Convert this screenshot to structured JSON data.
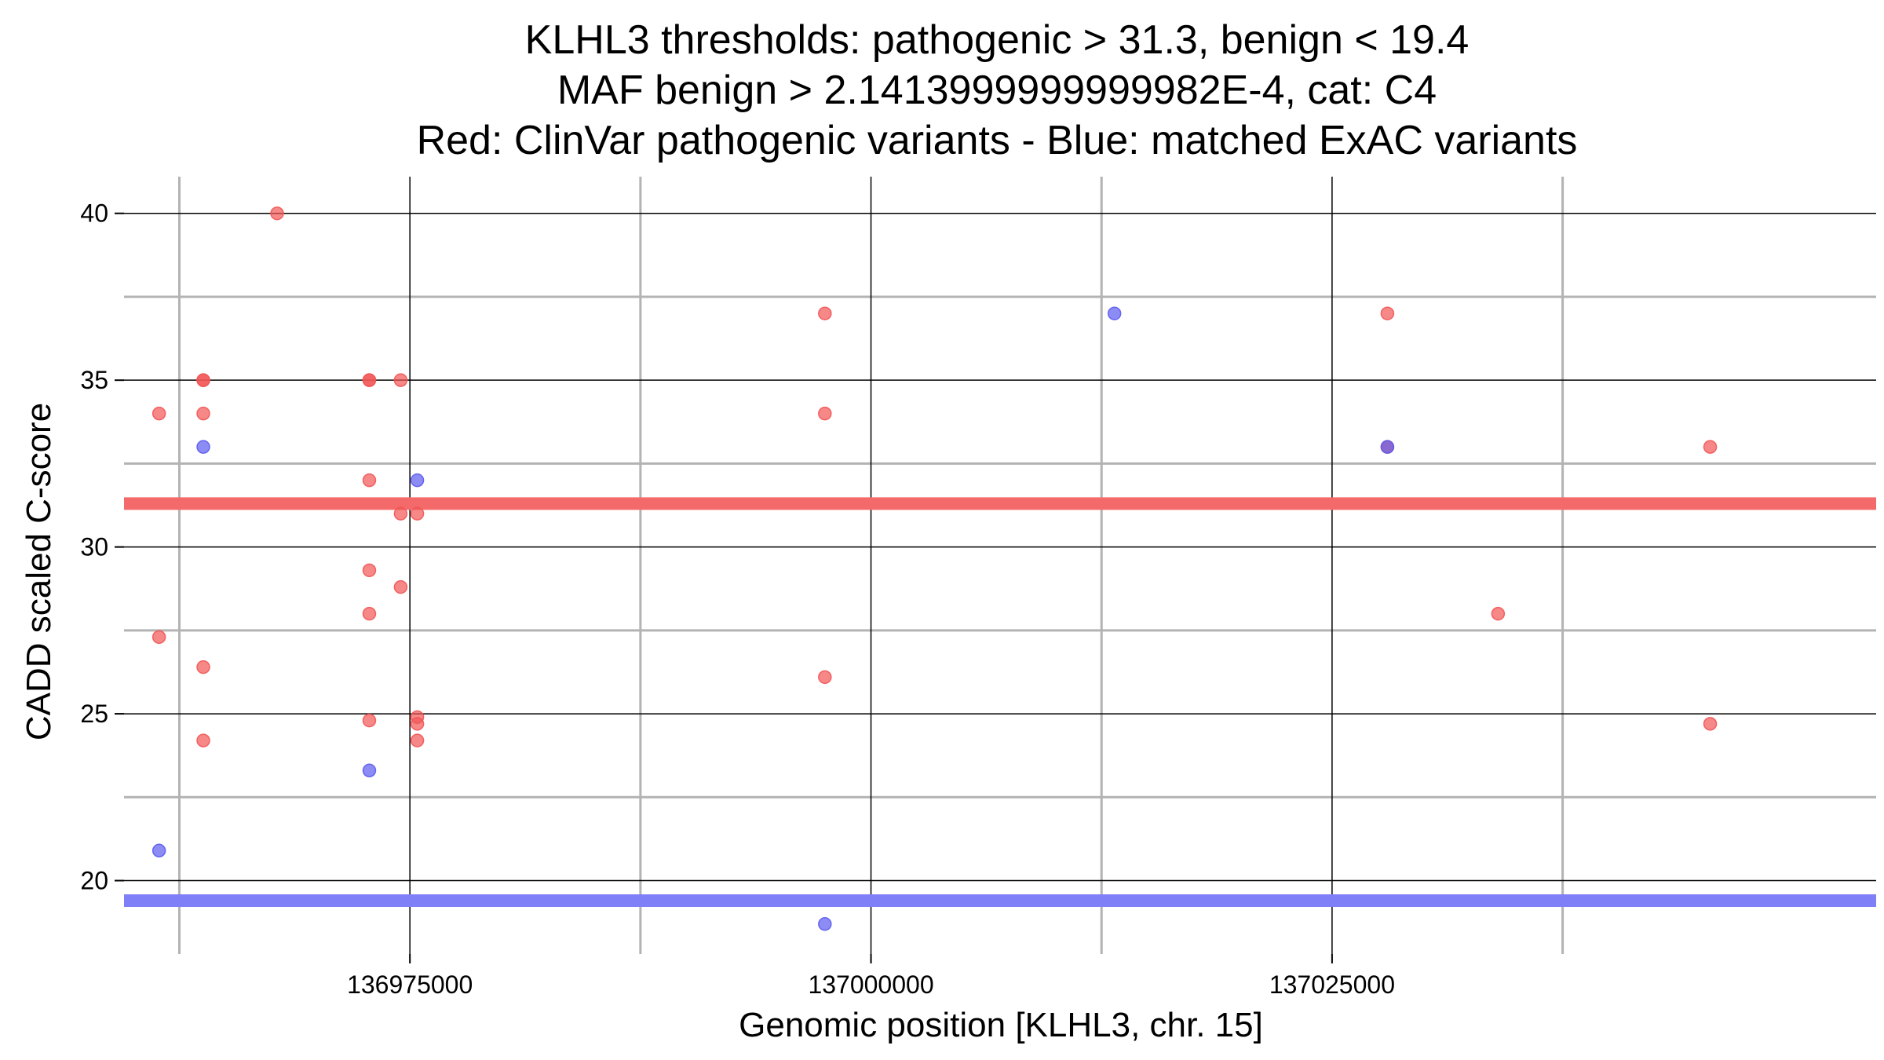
{
  "chart_data": {
    "type": "scatter",
    "title_lines": [
      "KLHL3 thresholds: pathogenic > 31.3, benign < 19.4",
      "MAF benign > 2.1413999999999982E-4, cat: C4",
      "Red: ClinVar pathogenic variants - Blue: matched ExAC variants"
    ],
    "xlabel": "Genomic position [KLHL3, chr. 15]",
    "ylabel": "CADD scaled C-score",
    "xlim": [
      136959500,
      137054500
    ],
    "ylim": [
      17.8,
      41.1
    ],
    "x_major_ticks": [
      136975000,
      137000000,
      137025000
    ],
    "x_tick_labels": [
      "136975000",
      "137000000",
      "137025000"
    ],
    "x_minor_ticks": [
      136962500,
      136987500,
      137012500,
      137037500
    ],
    "y_major_ticks": [
      20,
      25,
      30,
      35,
      40
    ],
    "y_tick_labels": [
      "20",
      "25",
      "30",
      "35",
      "40"
    ],
    "y_minor_ticks": [
      22.5,
      27.5,
      32.5,
      37.5
    ],
    "thresholds": [
      {
        "name": "pathogenic",
        "value": 31.3,
        "color": "#f46a6a"
      },
      {
        "name": "benign",
        "value": 19.4,
        "color": "#7f7ff7"
      }
    ],
    "series": [
      {
        "name": "ClinVar pathogenic variants",
        "color": "#f25555",
        "points": [
          {
            "x": 136967800,
            "y": 40
          },
          {
            "x": 136961400,
            "y": 34
          },
          {
            "x": 136961400,
            "y": 27.3
          },
          {
            "x": 136963800,
            "y": 35
          },
          {
            "x": 136963800,
            "y": 35
          },
          {
            "x": 136963800,
            "y": 34
          },
          {
            "x": 136963800,
            "y": 26.4
          },
          {
            "x": 136963800,
            "y": 24.2
          },
          {
            "x": 136972800,
            "y": 35
          },
          {
            "x": 136972800,
            "y": 35
          },
          {
            "x": 136972800,
            "y": 32
          },
          {
            "x": 136972800,
            "y": 29.3
          },
          {
            "x": 136972800,
            "y": 28
          },
          {
            "x": 136972800,
            "y": 24.8
          },
          {
            "x": 136974500,
            "y": 35
          },
          {
            "x": 136974500,
            "y": 31
          },
          {
            "x": 136974500,
            "y": 28.8
          },
          {
            "x": 136975400,
            "y": 31
          },
          {
            "x": 136975400,
            "y": 24.9
          },
          {
            "x": 136975400,
            "y": 24.7
          },
          {
            "x": 136975400,
            "y": 24.2
          },
          {
            "x": 136997500,
            "y": 37
          },
          {
            "x": 136997500,
            "y": 34
          },
          {
            "x": 136997500,
            "y": 26.1
          },
          {
            "x": 137028000,
            "y": 37
          },
          {
            "x": 137028000,
            "y": 33
          },
          {
            "x": 137034000,
            "y": 28
          },
          {
            "x": 137045500,
            "y": 33
          },
          {
            "x": 137045500,
            "y": 24.7
          }
        ]
      },
      {
        "name": "matched ExAC variants",
        "color": "#5b5bf0",
        "points": [
          {
            "x": 136961400,
            "y": 20.9
          },
          {
            "x": 136963800,
            "y": 33
          },
          {
            "x": 136972800,
            "y": 23.3
          },
          {
            "x": 136975400,
            "y": 32
          },
          {
            "x": 136997500,
            "y": 18.7
          },
          {
            "x": 137013200,
            "y": 37
          },
          {
            "x": 137028000,
            "y": 33
          }
        ]
      }
    ]
  }
}
